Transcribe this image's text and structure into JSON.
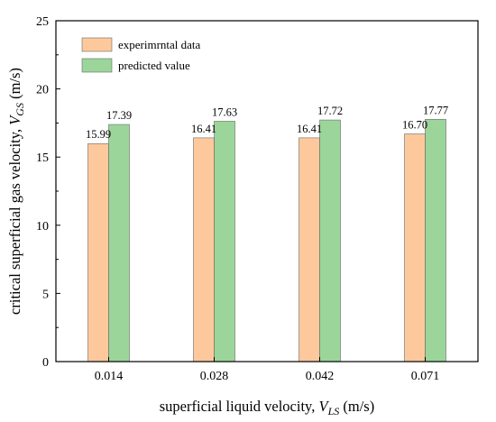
{
  "chart_data": {
    "type": "bar",
    "categories": [
      "0.014",
      "0.028",
      "0.042",
      "0.071"
    ],
    "series": [
      {
        "name": "experimrntal data",
        "values": [
          15.99,
          16.41,
          16.41,
          16.7
        ],
        "color": "#FDC99C"
      },
      {
        "name": "predicted value",
        "values": [
          17.39,
          17.63,
          17.72,
          17.77
        ],
        "color": "#9BD59A"
      }
    ],
    "data_labels": [
      [
        "15.99",
        "16.41",
        "16.41",
        "16.70"
      ],
      [
        "17.39",
        "17.63",
        "17.72",
        "17.77"
      ]
    ],
    "ylim": [
      0,
      25
    ],
    "yticks": [
      0,
      5,
      10,
      15,
      20,
      25
    ],
    "xlabel": {
      "main": "superficial liquid velocity, ",
      "var": "V",
      "sub": "LS",
      "unit": " (m/s)"
    },
    "ylabel": {
      "main": "critical superficial gas velocity, ",
      "var": "V",
      "sub": "GS",
      "unit": " (m/s)"
    },
    "legend_position": "top-left",
    "grid": false
  }
}
